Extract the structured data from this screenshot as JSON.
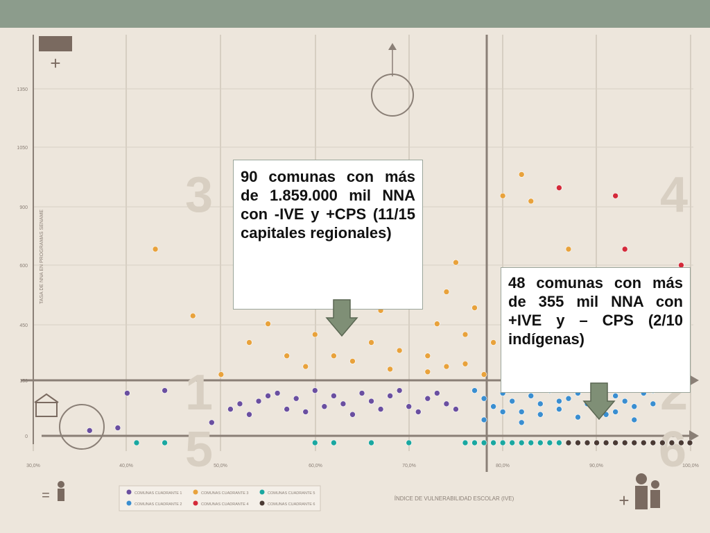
{
  "colors": {
    "top_bar": "#8c9c8c",
    "background": "#ede6dc",
    "quadrant1": "#6a4fa0",
    "quadrant2": "#3a8ed0",
    "quadrant3": "#e8a23c",
    "quadrant4": "#d42a3a",
    "quadrant5": "#1aa7a0",
    "quadrant6": "#4a3a34",
    "arrow_fill": "#7f8f76"
  },
  "callouts": {
    "left": "90 comunas con más de 1.859.000 mil NNA con -IVE y +CPS (11/15 capitales regionales)",
    "right": "48 comunas con más de 355 mil NNA con +IVE y – CPS (2/10 indígenas)"
  },
  "chart_data": {
    "type": "scatter",
    "title": "",
    "xlabel": "ÍNDICE DE VULNERABILIDAD ESCOLAR (IVE)",
    "ylabel": "TASA DE NNA EN PROGRAMAS SENAME",
    "quadrant_numbers": [
      "1",
      "2",
      "3",
      "4",
      "5",
      "6"
    ],
    "legend": [
      {
        "name": "COMUNAS CUADRANTE 1",
        "color": "#6a4fa0"
      },
      {
        "name": "COMUNAS CUADRANTE 3",
        "color": "#e8a23c"
      },
      {
        "name": "COMUNAS CUADRANTE 5",
        "color": "#1aa7a0"
      },
      {
        "name": "COMUNAS CUADRANTE 2",
        "color": "#3a8ed0"
      },
      {
        "name": "COMUNAS CUADRANTE 4",
        "color": "#d42a3a"
      },
      {
        "name": "COMUNAS CUADRANTE 6",
        "color": "#4a3a34"
      }
    ],
    "x_ticks": [
      "30,0%",
      "40,0%",
      "50,0%",
      "60,0%",
      "70,0%",
      "80,0%",
      "90,0%",
      "100,0%"
    ],
    "y_ticks": [
      "0",
      "150",
      "450",
      "600",
      "900",
      "1050",
      "1350"
    ],
    "xlim": [
      30,
      100
    ],
    "ylim": [
      0,
      1400
    ],
    "grid": true,
    "series": [
      {
        "quadrant": 1,
        "points": [
          [
            36,
            20
          ],
          [
            39,
            30
          ],
          [
            40,
            160
          ],
          [
            44,
            170
          ],
          [
            49,
            50
          ],
          [
            51,
            100
          ],
          [
            52,
            120
          ],
          [
            53,
            80
          ],
          [
            54,
            130
          ],
          [
            55,
            150
          ],
          [
            56,
            160
          ],
          [
            57,
            100
          ],
          [
            58,
            140
          ],
          [
            59,
            90
          ],
          [
            60,
            170
          ],
          [
            61,
            110
          ],
          [
            62,
            150
          ],
          [
            63,
            120
          ],
          [
            64,
            80
          ],
          [
            65,
            160
          ],
          [
            66,
            130
          ],
          [
            67,
            100
          ],
          [
            68,
            150
          ],
          [
            69,
            170
          ],
          [
            70,
            110
          ],
          [
            71,
            90
          ],
          [
            72,
            140
          ],
          [
            73,
            160
          ],
          [
            74,
            120
          ],
          [
            75,
            100
          ]
        ]
      },
      {
        "quadrant": 2,
        "points": [
          [
            77,
            170
          ],
          [
            78,
            140
          ],
          [
            79,
            110
          ],
          [
            80,
            160
          ],
          [
            81,
            130
          ],
          [
            82,
            90
          ],
          [
            83,
            150
          ],
          [
            84,
            120
          ],
          [
            85,
            170
          ],
          [
            86,
            100
          ],
          [
            87,
            140
          ],
          [
            88,
            160
          ],
          [
            89,
            120
          ],
          [
            90,
            100
          ],
          [
            91,
            80
          ],
          [
            92,
            150
          ],
          [
            93,
            130
          ],
          [
            94,
            110
          ],
          [
            95,
            160
          ],
          [
            96,
            170
          ],
          [
            78,
            60
          ],
          [
            80,
            90
          ],
          [
            82,
            50
          ],
          [
            84,
            80
          ],
          [
            86,
            130
          ],
          [
            88,
            70
          ],
          [
            90,
            150
          ],
          [
            92,
            90
          ],
          [
            94,
            60
          ],
          [
            96,
            120
          ]
        ]
      },
      {
        "quadrant": 3,
        "points": [
          [
            43,
            700
          ],
          [
            47,
            450
          ],
          [
            50,
            230
          ],
          [
            53,
            350
          ],
          [
            55,
            420
          ],
          [
            57,
            300
          ],
          [
            58,
            500
          ],
          [
            59,
            260
          ],
          [
            60,
            380
          ],
          [
            61,
            520
          ],
          [
            62,
            300
          ],
          [
            63,
            440
          ],
          [
            64,
            280
          ],
          [
            65,
            600
          ],
          [
            66,
            350
          ],
          [
            67,
            470
          ],
          [
            68,
            250
          ],
          [
            69,
            320
          ],
          [
            70,
            800
          ],
          [
            71,
            560
          ],
          [
            72,
            300
          ],
          [
            73,
            420
          ],
          [
            74,
            260
          ],
          [
            75,
            650
          ],
          [
            76,
            380
          ],
          [
            77,
            480
          ],
          [
            78,
            230
          ],
          [
            79,
            350
          ],
          [
            80,
            900
          ],
          [
            81,
            420
          ],
          [
            82,
            980
          ],
          [
            83,
            880
          ],
          [
            84,
            300
          ],
          [
            85,
            600
          ],
          [
            86,
            400
          ],
          [
            87,
            700
          ],
          [
            88,
            500
          ],
          [
            76,
            270
          ],
          [
            74,
            540
          ],
          [
            72,
            240
          ]
        ]
      },
      {
        "quadrant": 4,
        "points": [
          [
            86,
            930
          ],
          [
            87,
            280
          ],
          [
            88,
            200
          ],
          [
            89,
            600
          ],
          [
            90,
            420
          ],
          [
            91,
            350
          ],
          [
            92,
            260
          ],
          [
            93,
            700
          ],
          [
            94,
            220
          ],
          [
            95,
            380
          ],
          [
            96,
            300
          ],
          [
            97,
            500
          ],
          [
            98,
            250
          ],
          [
            99,
            640
          ],
          [
            90,
            180
          ],
          [
            92,
            900
          ],
          [
            94,
            460
          ],
          [
            96,
            220
          ],
          [
            98,
            400
          ]
        ]
      },
      {
        "quadrant": 5,
        "points": [
          [
            41,
            0
          ],
          [
            44,
            0
          ],
          [
            60,
            0
          ],
          [
            62,
            0
          ],
          [
            66,
            0
          ],
          [
            70,
            0
          ],
          [
            76,
            0
          ],
          [
            77,
            0
          ],
          [
            78,
            0
          ],
          [
            79,
            0
          ],
          [
            80,
            0
          ],
          [
            81,
            0
          ],
          [
            82,
            0
          ],
          [
            83,
            0
          ],
          [
            84,
            0
          ],
          [
            85,
            0
          ],
          [
            86,
            0
          ]
        ]
      },
      {
        "quadrant": 6,
        "points": [
          [
            87,
            0
          ],
          [
            88,
            0
          ],
          [
            89,
            0
          ],
          [
            90,
            0
          ],
          [
            91,
            0
          ],
          [
            92,
            0
          ],
          [
            93,
            0
          ],
          [
            94,
            0
          ],
          [
            95,
            0
          ],
          [
            96,
            0
          ],
          [
            97,
            0
          ],
          [
            98,
            0
          ],
          [
            99,
            0
          ],
          [
            100,
            0
          ]
        ]
      }
    ]
  }
}
